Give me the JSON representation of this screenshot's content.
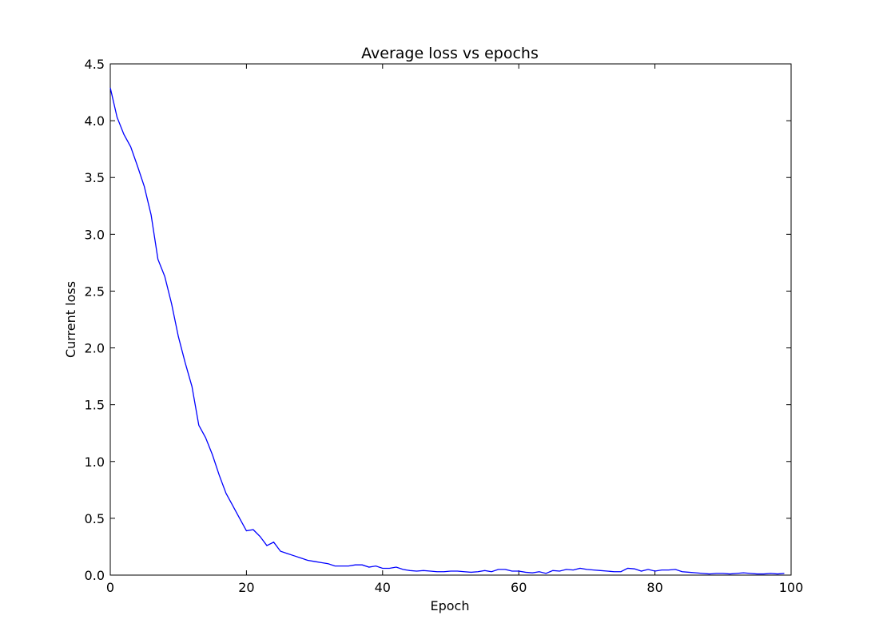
{
  "chart_data": {
    "type": "line",
    "title": "Average loss vs epochs",
    "xlabel": "Epoch",
    "ylabel": "Current loss",
    "xlim": [
      0,
      100
    ],
    "ylim": [
      0,
      4.5
    ],
    "xticks": [
      0,
      20,
      40,
      60,
      80,
      100
    ],
    "xtick_labels": [
      "0",
      "20",
      "40",
      "60",
      "80",
      "100"
    ],
    "yticks": [
      0,
      0.5,
      1.0,
      1.5,
      2.0,
      2.5,
      3.0,
      3.5,
      4.0,
      4.5
    ],
    "ytick_labels": [
      "0.0",
      "0.5",
      "1.0",
      "1.5",
      "2.0",
      "2.5",
      "3.0",
      "3.5",
      "4.0",
      "4.5"
    ],
    "grid": false,
    "line_color": "#0000ff",
    "series": [
      {
        "x": [
          0,
          1,
          2,
          3,
          4,
          5,
          6,
          7,
          8,
          9,
          10,
          11,
          12,
          13,
          14,
          15,
          16,
          17,
          18,
          19,
          20,
          21,
          22,
          23,
          24,
          25,
          26,
          27,
          28,
          29,
          30,
          31,
          32,
          33,
          34,
          35,
          36,
          37,
          38,
          39,
          40,
          41,
          42,
          43,
          44,
          45,
          46,
          47,
          48,
          49,
          50,
          51,
          52,
          53,
          54,
          55,
          56,
          57,
          58,
          59,
          60,
          61,
          62,
          63,
          64,
          65,
          66,
          67,
          68,
          69,
          70,
          71,
          72,
          73,
          74,
          75,
          76,
          77,
          78,
          79,
          80,
          81,
          82,
          83,
          84,
          85,
          86,
          87,
          88,
          89,
          90,
          91,
          92,
          93,
          94,
          95,
          96,
          97,
          98,
          99
        ],
        "y": [
          4.29,
          4.03,
          3.88,
          3.77,
          3.6,
          3.42,
          3.17,
          2.78,
          2.63,
          2.39,
          2.1,
          1.87,
          1.66,
          1.32,
          1.21,
          1.06,
          0.88,
          0.72,
          0.61,
          0.5,
          0.39,
          0.4,
          0.34,
          0.26,
          0.29,
          0.21,
          0.19,
          0.17,
          0.15,
          0.13,
          0.12,
          0.11,
          0.1,
          0.08,
          0.08,
          0.08,
          0.09,
          0.09,
          0.07,
          0.08,
          0.06,
          0.06,
          0.07,
          0.05,
          0.04,
          0.035,
          0.04,
          0.035,
          0.03,
          0.03,
          0.035,
          0.035,
          0.03,
          0.025,
          0.03,
          0.04,
          0.03,
          0.05,
          0.05,
          0.035,
          0.035,
          0.025,
          0.02,
          0.03,
          0.015,
          0.04,
          0.035,
          0.05,
          0.045,
          0.06,
          0.05,
          0.045,
          0.04,
          0.035,
          0.03,
          0.03,
          0.06,
          0.055,
          0.035,
          0.05,
          0.035,
          0.045,
          0.045,
          0.05,
          0.03,
          0.025,
          0.02,
          0.015,
          0.01,
          0.015,
          0.015,
          0.01,
          0.015,
          0.02,
          0.015,
          0.01,
          0.01,
          0.015,
          0.01,
          0.015
        ]
      }
    ]
  }
}
